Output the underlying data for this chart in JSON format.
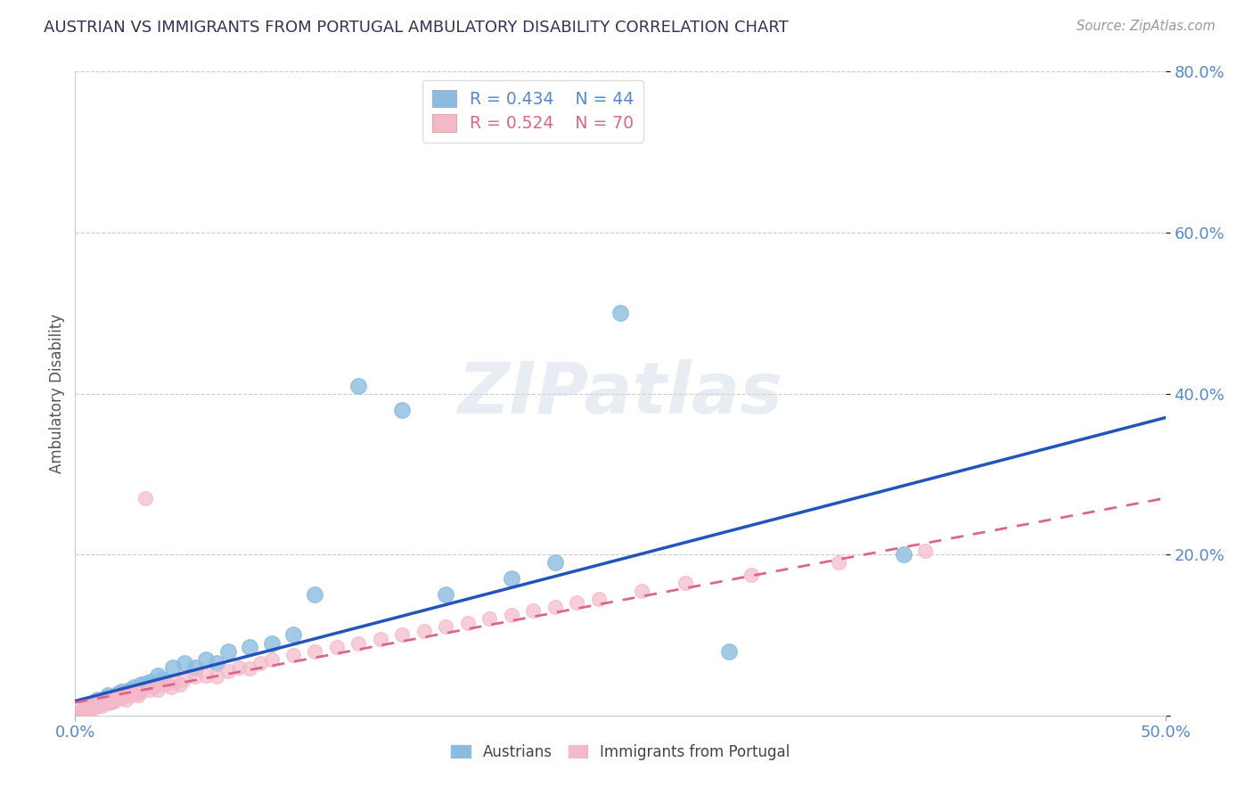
{
  "title": "AUSTRIAN VS IMMIGRANTS FROM PORTUGAL AMBULATORY DISABILITY CORRELATION CHART",
  "source": "Source: ZipAtlas.com",
  "ylabel": "Ambulatory Disability",
  "xlabel": "",
  "xlim": [
    0.0,
    0.5
  ],
  "ylim": [
    0.0,
    0.8
  ],
  "yticks": [
    0.0,
    0.2,
    0.4,
    0.6,
    0.8
  ],
  "ytick_labels": [
    "",
    "20.0%",
    "40.0%",
    "60.0%",
    "80.0%"
  ],
  "xtick_labels_bottom": [
    "0.0%",
    "50.0%"
  ],
  "xtick_positions_bottom": [
    0.0,
    0.5
  ],
  "austrians_R": 0.434,
  "austrians_N": 44,
  "portugal_R": 0.524,
  "portugal_N": 70,
  "austrian_color": "#8bbcdf",
  "portugal_color": "#f5b8c8",
  "austrian_line_color": "#2255bb",
  "portugal_line_color": "#dd6688",
  "background_color": "#ffffff",
  "grid_color": "#cccccc",
  "title_color": "#333355",
  "axis_label_color": "#555555",
  "tick_label_color": "#5588cc",
  "legend_R_color": "#5588cc",
  "watermark": "ZIPatlas",
  "austrian_line_x0": 0.0,
  "austrian_line_y0": 0.018,
  "austrian_line_x1": 0.5,
  "austrian_line_y1": 0.37,
  "portugal_line_x0": 0.0,
  "portugal_line_y0": 0.016,
  "portugal_line_x1": 0.5,
  "portugal_line_y1": 0.27,
  "austrians_x": [
    0.003,
    0.005,
    0.007,
    0.008,
    0.01,
    0.01,
    0.012,
    0.014,
    0.015,
    0.016,
    0.017,
    0.018,
    0.019,
    0.02,
    0.021,
    0.022,
    0.023,
    0.025,
    0.027,
    0.028,
    0.03,
    0.032,
    0.034,
    0.036,
    0.038,
    0.04,
    0.045,
    0.05,
    0.055,
    0.06,
    0.065,
    0.07,
    0.08,
    0.09,
    0.1,
    0.11,
    0.13,
    0.15,
    0.17,
    0.2,
    0.22,
    0.25,
    0.3,
    0.38
  ],
  "austrians_y": [
    0.005,
    0.008,
    0.01,
    0.012,
    0.015,
    0.02,
    0.018,
    0.022,
    0.025,
    0.018,
    0.02,
    0.022,
    0.025,
    0.028,
    0.03,
    0.025,
    0.03,
    0.032,
    0.035,
    0.03,
    0.038,
    0.04,
    0.042,
    0.038,
    0.05,
    0.045,
    0.06,
    0.065,
    0.06,
    0.07,
    0.065,
    0.08,
    0.085,
    0.09,
    0.1,
    0.15,
    0.41,
    0.38,
    0.15,
    0.17,
    0.19,
    0.5,
    0.08,
    0.2
  ],
  "portugal_x": [
    0.002,
    0.003,
    0.004,
    0.005,
    0.006,
    0.007,
    0.008,
    0.008,
    0.009,
    0.01,
    0.01,
    0.011,
    0.012,
    0.013,
    0.013,
    0.014,
    0.015,
    0.016,
    0.017,
    0.018,
    0.019,
    0.02,
    0.021,
    0.022,
    0.023,
    0.024,
    0.025,
    0.026,
    0.027,
    0.028,
    0.029,
    0.03,
    0.032,
    0.034,
    0.036,
    0.038,
    0.04,
    0.042,
    0.044,
    0.046,
    0.048,
    0.05,
    0.055,
    0.06,
    0.065,
    0.07,
    0.075,
    0.08,
    0.085,
    0.09,
    0.1,
    0.11,
    0.12,
    0.13,
    0.14,
    0.15,
    0.16,
    0.17,
    0.18,
    0.19,
    0.2,
    0.21,
    0.22,
    0.23,
    0.24,
    0.26,
    0.28,
    0.31,
    0.35,
    0.39
  ],
  "portugal_y": [
    0.005,
    0.008,
    0.01,
    0.012,
    0.008,
    0.01,
    0.012,
    0.015,
    0.01,
    0.012,
    0.018,
    0.015,
    0.012,
    0.015,
    0.02,
    0.018,
    0.015,
    0.02,
    0.022,
    0.018,
    0.022,
    0.025,
    0.022,
    0.025,
    0.02,
    0.025,
    0.028,
    0.025,
    0.03,
    0.028,
    0.025,
    0.03,
    0.27,
    0.032,
    0.035,
    0.032,
    0.038,
    0.04,
    0.035,
    0.042,
    0.038,
    0.045,
    0.048,
    0.05,
    0.048,
    0.055,
    0.06,
    0.058,
    0.065,
    0.07,
    0.075,
    0.08,
    0.085,
    0.09,
    0.095,
    0.1,
    0.105,
    0.11,
    0.115,
    0.12,
    0.125,
    0.13,
    0.135,
    0.14,
    0.145,
    0.155,
    0.165,
    0.175,
    0.19,
    0.205
  ]
}
